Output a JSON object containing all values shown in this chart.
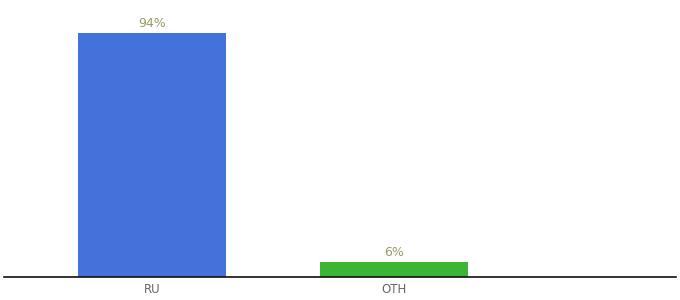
{
  "categories": [
    "RU",
    "OTH"
  ],
  "values": [
    94,
    6
  ],
  "bar_colors": [
    "#4472db",
    "#3db534"
  ],
  "label_texts": [
    "94%",
    "6%"
  ],
  "background_color": "#ffffff",
  "label_color": "#999966",
  "label_fontsize": 9,
  "tick_fontsize": 8.5,
  "tick_color": "#666666",
  "ylim": [
    0,
    105
  ],
  "bar_width": 0.22,
  "x_positions": [
    0.22,
    0.58
  ],
  "xlim": [
    0.0,
    1.0
  ]
}
